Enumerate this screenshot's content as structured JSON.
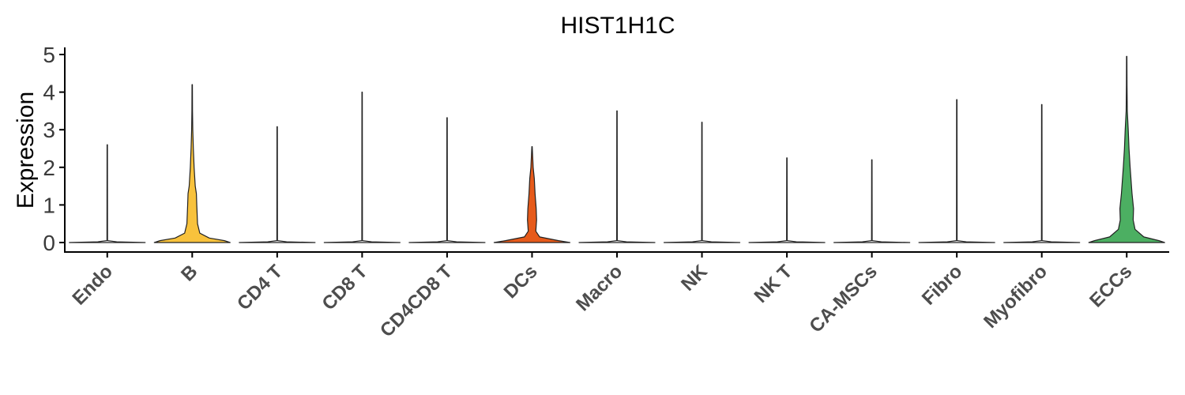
{
  "chart_data": {
    "type": "violin",
    "title": "HIST1H1C",
    "ylabel": "Expression",
    "xlabel": "",
    "ylim": [
      -0.25,
      5.2
    ],
    "yticks": [
      0,
      1,
      2,
      3,
      4,
      5
    ],
    "grid": false,
    "legend": "none",
    "categories": [
      "Endo",
      "B",
      "CD4 T",
      "CD8 T",
      "CD4CD8 T",
      "DCs",
      "Macro",
      "NK",
      "NK T",
      "CA-MSCs",
      "Fibro",
      "Myofibro",
      "ECCs"
    ],
    "series": [
      {
        "category": "Endo",
        "max": 2.6,
        "fill": "#ffffff",
        "profile": [
          [
            0,
            1.0
          ],
          [
            0.02,
            0.25
          ],
          [
            0.05,
            0.008
          ],
          [
            2.6,
            0.005
          ]
        ]
      },
      {
        "category": "B",
        "max": 4.2,
        "fill": "#f8c23c",
        "profile": [
          [
            0,
            1.0
          ],
          [
            0.05,
            0.85
          ],
          [
            0.12,
            0.45
          ],
          [
            0.25,
            0.2
          ],
          [
            0.5,
            0.14
          ],
          [
            1.0,
            0.12
          ],
          [
            1.3,
            0.11
          ],
          [
            1.5,
            0.08
          ],
          [
            2.0,
            0.05
          ],
          [
            2.5,
            0.03
          ],
          [
            3.0,
            0.015
          ],
          [
            3.5,
            0.008
          ],
          [
            4.2,
            0.005
          ]
        ]
      },
      {
        "category": "CD4 T",
        "max": 3.08,
        "fill": "#ffffff",
        "profile": [
          [
            0,
            1.0
          ],
          [
            0.02,
            0.25
          ],
          [
            0.05,
            0.008
          ],
          [
            3.08,
            0.005
          ]
        ]
      },
      {
        "category": "CD8 T",
        "max": 4.0,
        "fill": "#ffffff",
        "profile": [
          [
            0,
            1.0
          ],
          [
            0.02,
            0.25
          ],
          [
            0.05,
            0.008
          ],
          [
            4.0,
            0.005
          ]
        ]
      },
      {
        "category": "CD4CD8 T",
        "max": 3.32,
        "fill": "#ffffff",
        "profile": [
          [
            0,
            1.0
          ],
          [
            0.02,
            0.25
          ],
          [
            0.05,
            0.008
          ],
          [
            3.32,
            0.005
          ]
        ]
      },
      {
        "category": "DCs",
        "max": 2.55,
        "fill": "#e65a1a",
        "profile": [
          [
            0,
            1.0
          ],
          [
            0.05,
            0.7
          ],
          [
            0.15,
            0.2
          ],
          [
            0.3,
            0.1
          ],
          [
            0.6,
            0.12
          ],
          [
            0.9,
            0.11
          ],
          [
            1.3,
            0.08
          ],
          [
            1.7,
            0.06
          ],
          [
            2.0,
            0.03
          ],
          [
            2.55,
            0.005
          ]
        ]
      },
      {
        "category": "Macro",
        "max": 3.5,
        "fill": "#ffffff",
        "profile": [
          [
            0,
            1.0
          ],
          [
            0.02,
            0.25
          ],
          [
            0.05,
            0.008
          ],
          [
            3.5,
            0.005
          ]
        ]
      },
      {
        "category": "NK",
        "max": 3.2,
        "fill": "#ffffff",
        "profile": [
          [
            0,
            1.0
          ],
          [
            0.02,
            0.25
          ],
          [
            0.05,
            0.008
          ],
          [
            3.2,
            0.005
          ]
        ]
      },
      {
        "category": "NK T",
        "max": 2.25,
        "fill": "#ffffff",
        "profile": [
          [
            0,
            1.0
          ],
          [
            0.02,
            0.25
          ],
          [
            0.05,
            0.008
          ],
          [
            2.25,
            0.005
          ]
        ]
      },
      {
        "category": "CA-MSCs",
        "max": 2.2,
        "fill": "#ffffff",
        "profile": [
          [
            0,
            1.0
          ],
          [
            0.02,
            0.25
          ],
          [
            0.05,
            0.008
          ],
          [
            2.2,
            0.005
          ]
        ]
      },
      {
        "category": "Fibro",
        "max": 3.8,
        "fill": "#ffffff",
        "profile": [
          [
            0,
            1.0
          ],
          [
            0.02,
            0.25
          ],
          [
            0.05,
            0.008
          ],
          [
            3.8,
            0.005
          ]
        ]
      },
      {
        "category": "Myofibro",
        "max": 3.67,
        "fill": "#ffffff",
        "profile": [
          [
            0,
            1.0
          ],
          [
            0.02,
            0.25
          ],
          [
            0.05,
            0.008
          ],
          [
            3.67,
            0.005
          ]
        ]
      },
      {
        "category": "ECCs",
        "max": 4.95,
        "fill": "#4caf62",
        "profile": [
          [
            0,
            1.0
          ],
          [
            0.05,
            0.85
          ],
          [
            0.15,
            0.45
          ],
          [
            0.35,
            0.22
          ],
          [
            0.6,
            0.17
          ],
          [
            0.9,
            0.18
          ],
          [
            1.3,
            0.14
          ],
          [
            2.0,
            0.09
          ],
          [
            2.5,
            0.06
          ],
          [
            3.0,
            0.04
          ],
          [
            3.5,
            0.015
          ],
          [
            4.2,
            0.008
          ],
          [
            4.95,
            0.005
          ]
        ]
      }
    ]
  }
}
